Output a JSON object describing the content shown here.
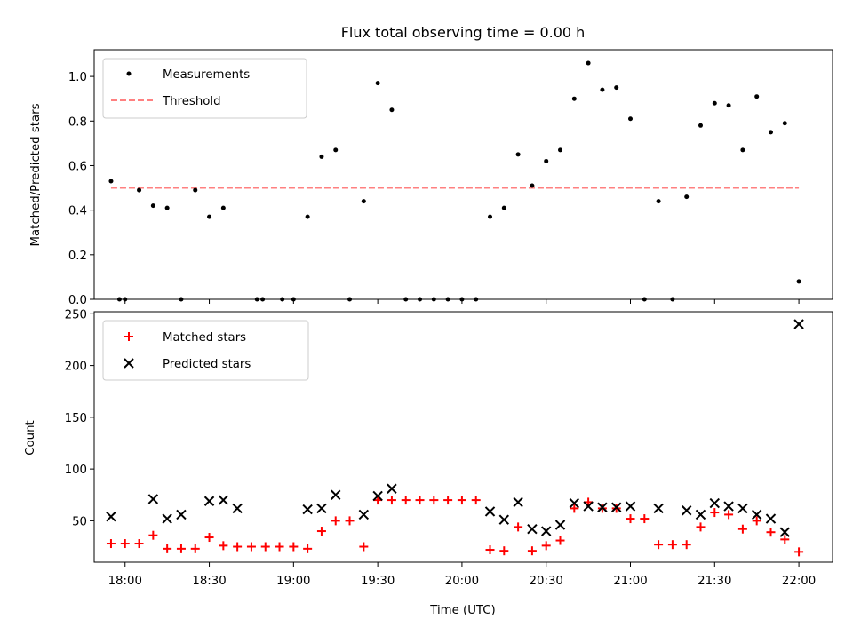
{
  "chart_data": {
    "title": "Flux total observing time = 0.00 h",
    "xlabel": "Time (UTC)",
    "x_unit": "time of day (HH:MM, UTC)",
    "xlim": [
      "17:49",
      "22:12"
    ],
    "xticks": [
      "18:00",
      "18:30",
      "19:00",
      "19:30",
      "20:00",
      "20:30",
      "21:00",
      "21:30",
      "22:00"
    ],
    "x": [
      "17:55",
      "18:00",
      "18:05",
      "18:10",
      "18:15",
      "18:20",
      "18:25",
      "18:30",
      "18:35",
      "18:40",
      "18:45",
      "18:50",
      "18:55",
      "19:00",
      "19:05",
      "19:10",
      "19:15",
      "19:20",
      "19:25",
      "19:30",
      "19:35",
      "19:40",
      "19:45",
      "19:50",
      "19:55",
      "20:00",
      "20:05",
      "20:10",
      "20:15",
      "20:20",
      "20:25",
      "20:30",
      "20:35",
      "20:40",
      "20:45",
      "20:50",
      "20:55",
      "21:00",
      "21:05",
      "21:10",
      "21:15",
      "21:20",
      "21:25",
      "21:30",
      "21:35",
      "21:40",
      "21:45",
      "21:50",
      "21:55",
      "22:00"
    ],
    "x_ratio": [
      "17:55",
      "17:58",
      "18:00",
      "18:05",
      "18:10",
      "18:15",
      "18:20",
      "18:25",
      "18:30",
      "18:35",
      "18:47",
      "18:49",
      "18:56",
      "19:00",
      "19:05",
      "19:10",
      "19:15",
      "19:20",
      "19:25",
      "19:30",
      "19:35",
      "19:40",
      "19:45",
      "19:50",
      "19:55",
      "20:00",
      "20:05",
      "20:10",
      "20:15",
      "20:20",
      "20:25",
      "20:30",
      "20:35",
      "20:40",
      "20:45",
      "20:50",
      "20:55",
      "21:00",
      "21:05",
      "21:10",
      "21:15",
      "21:20",
      "21:25",
      "21:30",
      "21:35",
      "21:40",
      "21:45",
      "21:50",
      "21:55",
      "22:00"
    ],
    "top": {
      "type": "scatter",
      "ylabel": "Matched/Predicted stars",
      "ylim": [
        0,
        1.12
      ],
      "yticks": [
        "0.0",
        "0.2",
        "0.4",
        "0.6",
        "0.8",
        "1.0"
      ],
      "legend_position": "top-left",
      "series": [
        {
          "name": "Measurements",
          "marker": "dot",
          "color": "#000000",
          "values": [
            0.53,
            0.0,
            0.0,
            0.49,
            0.42,
            0.41,
            0.0,
            0.49,
            0.37,
            0.41,
            0.0,
            0.0,
            0.0,
            0.0,
            0.37,
            0.64,
            0.67,
            0.0,
            0.44,
            0.97,
            0.85,
            0.0,
            0.0,
            0.0,
            0.0,
            0.0,
            0.0,
            0.37,
            0.41,
            0.65,
            0.51,
            0.62,
            0.67,
            0.9,
            1.06,
            0.94,
            0.95,
            0.81,
            0.0,
            0.44,
            0.0,
            0.46,
            0.78,
            0.88,
            0.87,
            0.67,
            0.91,
            0.75,
            0.79,
            0.08
          ]
        },
        {
          "name": "Threshold",
          "marker": "dashed-line",
          "color": "#ff8080",
          "x": [
            "17:55",
            "22:00"
          ],
          "values": [
            0.5,
            0.5
          ]
        }
      ]
    },
    "bottom": {
      "type": "scatter",
      "ylabel": "Count",
      "ylim": [
        10,
        252
      ],
      "yticks": [
        "50",
        "100",
        "150",
        "200",
        "250"
      ],
      "legend_position": "top-left",
      "series": [
        {
          "name": "Matched stars",
          "marker": "plus",
          "color": "#ff0000",
          "values": [
            28,
            28,
            28,
            36,
            23,
            23,
            23,
            34,
            26,
            25,
            25,
            25,
            25,
            25,
            23,
            40,
            50,
            50,
            25,
            70,
            70,
            70,
            70,
            70,
            70,
            70,
            70,
            22,
            21,
            44,
            21,
            26,
            31,
            62,
            68,
            62,
            62,
            52,
            52,
            27,
            27,
            27,
            44,
            58,
            56,
            42,
            50,
            39,
            32,
            20
          ]
        },
        {
          "name": "Predicted stars",
          "marker": "x",
          "color": "#000000",
          "values": [
            54,
            null,
            null,
            71,
            52,
            56,
            null,
            69,
            70,
            62,
            null,
            null,
            null,
            null,
            61,
            62,
            75,
            null,
            56,
            74,
            81,
            null,
            null,
            null,
            null,
            null,
            null,
            59,
            51,
            68,
            42,
            40,
            46,
            67,
            64,
            63,
            63,
            64,
            null,
            62,
            null,
            60,
            56,
            67,
            64,
            62,
            56,
            52,
            39,
            240
          ]
        }
      ]
    }
  }
}
